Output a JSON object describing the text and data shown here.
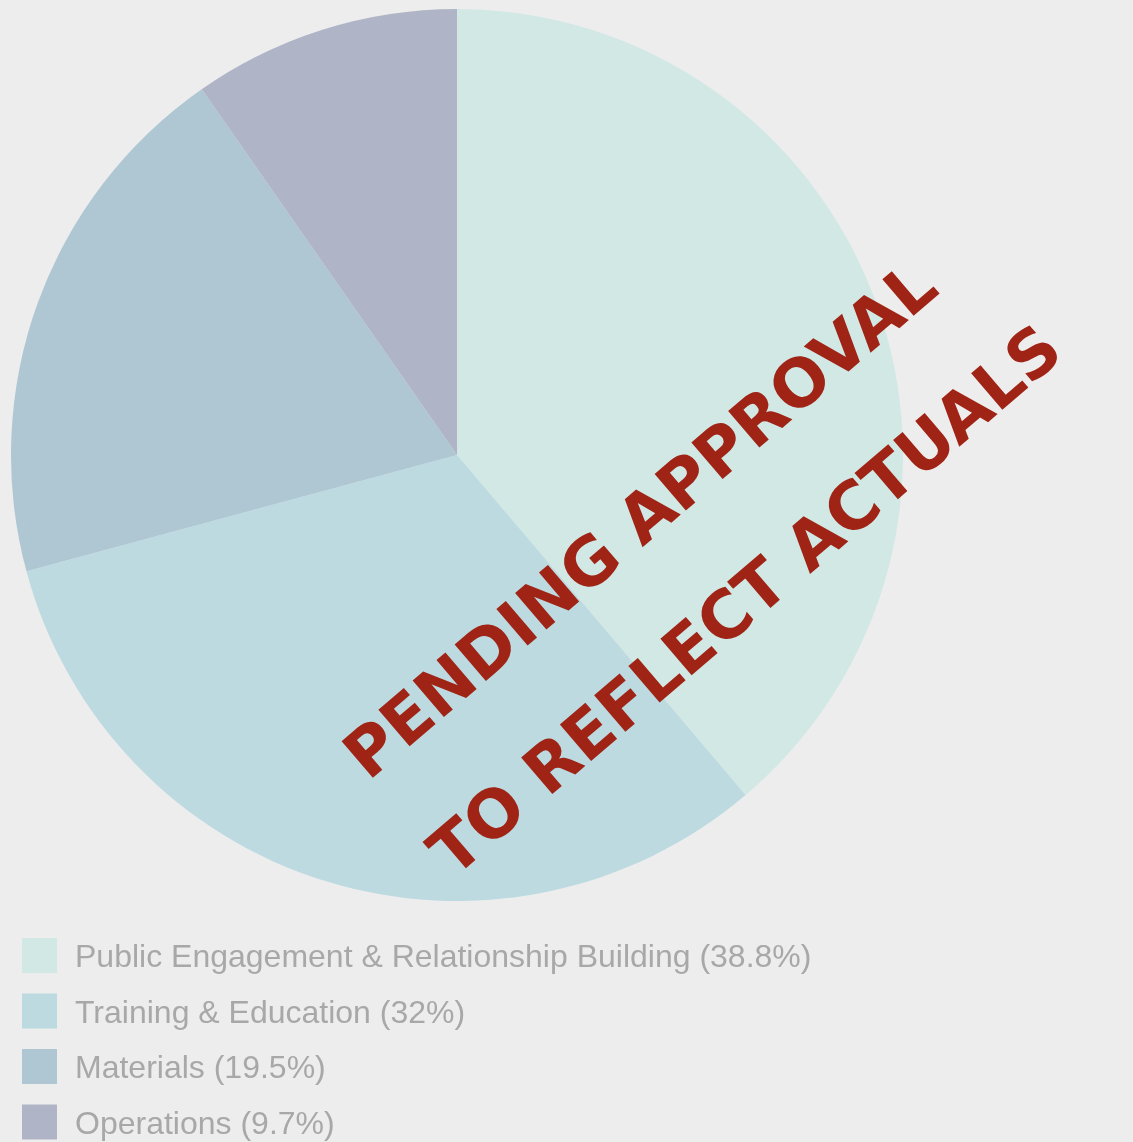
{
  "chart_data": {
    "type": "pie",
    "categories": [
      "Public Engagement & Relationship Building (38.8%)",
      "Training & Education (32%)",
      "Materials (19.5%)",
      "Operations (9.7%)"
    ],
    "values": [
      38.8,
      32,
      19.5,
      9.7
    ],
    "colors": [
      "#d1e8e5",
      "#bcdae0",
      "#afc6d3",
      "#afb5c6"
    ],
    "legend": "bottom left",
    "annotations": [
      "PENDING APPROVAL",
      "TO REFLECT ACTUALS"
    ]
  }
}
